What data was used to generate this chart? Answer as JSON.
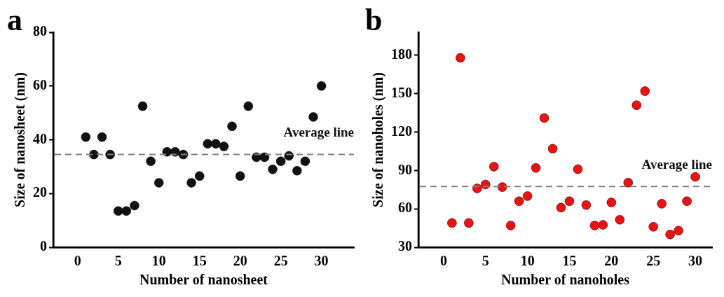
{
  "chart_data": [
    {
      "type": "scatter",
      "annotations": [
        "a"
      ],
      "xlabel": "Number of nanosheet",
      "ylabel": "Size of nanosheet (nm)",
      "x": [
        1,
        2,
        3,
        4,
        5,
        6,
        7,
        8,
        9,
        10,
        11,
        12,
        13,
        14,
        15,
        16,
        17,
        18,
        19,
        20,
        21,
        22,
        23,
        24,
        25,
        26,
        27,
        28,
        29,
        30
      ],
      "series": [
        {
          "color": "#111111",
          "values": [
            41,
            34.5,
            41,
            34.5,
            13.5,
            13.5,
            15.5,
            52.5,
            32,
            24,
            35.5,
            35.5,
            34.5,
            24,
            26.5,
            38.5,
            38.5,
            37.5,
            45,
            26.5,
            52.5,
            33.5,
            33.5,
            29,
            32,
            34,
            28.5,
            32,
            48.5,
            60
          ]
        }
      ],
      "xlim": [
        -3,
        34
      ],
      "xticks": [
        0,
        5,
        10,
        15,
        20,
        25,
        30
      ],
      "ylim": [
        0,
        80
      ],
      "yticks": [
        0,
        20,
        40,
        60,
        80
      ],
      "ref_lines": [
        {
          "axis": "y",
          "value": 34.5,
          "label": "Average line",
          "color": "#808080",
          "line_style": "dashed"
        }
      ],
      "grid": false,
      "legend": false,
      "marker": "circle"
    },
    {
      "type": "scatter",
      "annotations": [
        "b"
      ],
      "xlabel": "Number of nanoholes",
      "ylabel": "Size of nanoholes (nm)",
      "x": [
        1,
        2,
        3,
        4,
        5,
        6,
        7,
        8,
        9,
        10,
        11,
        12,
        13,
        14,
        15,
        16,
        17,
        18,
        19,
        20,
        21,
        22,
        23,
        24,
        25,
        26,
        27,
        28,
        29,
        30
      ],
      "series": [
        {
          "color": "#ee1111",
          "values": [
            49,
            178,
            49,
            76,
            79,
            93,
            77,
            47,
            66,
            70,
            92,
            131,
            107,
            61,
            66,
            91,
            63,
            47,
            47.5,
            65,
            51.5,
            80.5,
            141,
            152,
            46,
            64,
            40,
            43,
            66,
            85
          ]
        }
      ],
      "xlim": [
        -3,
        32
      ],
      "xticks": [
        0,
        5,
        10,
        15,
        20,
        25,
        30
      ],
      "ylim": [
        30,
        198
      ],
      "yticks": [
        30,
        60,
        90,
        120,
        150,
        180
      ],
      "ref_lines": [
        {
          "axis": "y",
          "value": 77.5,
          "label": "Average line",
          "color": "#808080",
          "line_style": "dashed"
        }
      ],
      "grid": false,
      "legend": false,
      "marker": "circle"
    }
  ]
}
